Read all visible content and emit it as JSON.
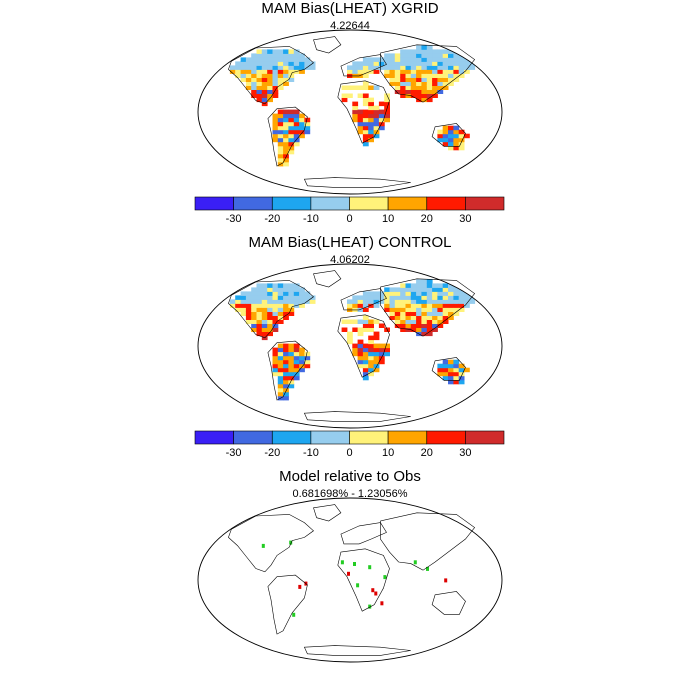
{
  "panels": [
    {
      "title": "MAM Bias(LHEAT) XGRID",
      "subtitle": "4.22644",
      "has_colorbar": true,
      "kind": "bias"
    },
    {
      "title": "MAM Bias(LHEAT) CONTROL",
      "subtitle": "4.06202",
      "has_colorbar": true,
      "kind": "bias"
    },
    {
      "title": "Model relative to Obs",
      "subtitle": "0.681698% - 1.23056%",
      "has_colorbar": false,
      "kind": "relative"
    }
  ],
  "colorbar": {
    "colors": [
      "#3a1ff5",
      "#4169e1",
      "#1ea6f0",
      "#96cdee",
      "#fff27a",
      "#ffa500",
      "#ff1a00",
      "#d02b2b"
    ],
    "tick_labels": [
      "-30",
      "-20",
      "-10",
      "0",
      "10",
      "20",
      "30"
    ]
  },
  "colors": {
    "land_outline": "#000000",
    "relative_better": "#22cc22",
    "relative_worse": "#dd0000"
  }
}
